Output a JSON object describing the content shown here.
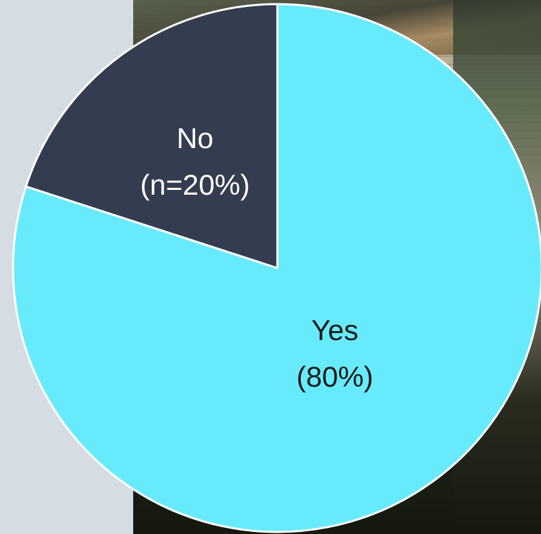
{
  "chart_data": {
    "type": "pie",
    "title": "",
    "slices": [
      {
        "label": "Yes",
        "value_text": "(80%)",
        "value": 80,
        "color": "#67ebfc",
        "text_color": "#1a1a1a"
      },
      {
        "label": "No",
        "value_text": "(n=20%)",
        "value": 20,
        "color": "#343d4f",
        "text_color": "#ffffff"
      }
    ],
    "start_angle_deg": 0,
    "direction": "clockwise",
    "edge_color": "#ffffff"
  }
}
